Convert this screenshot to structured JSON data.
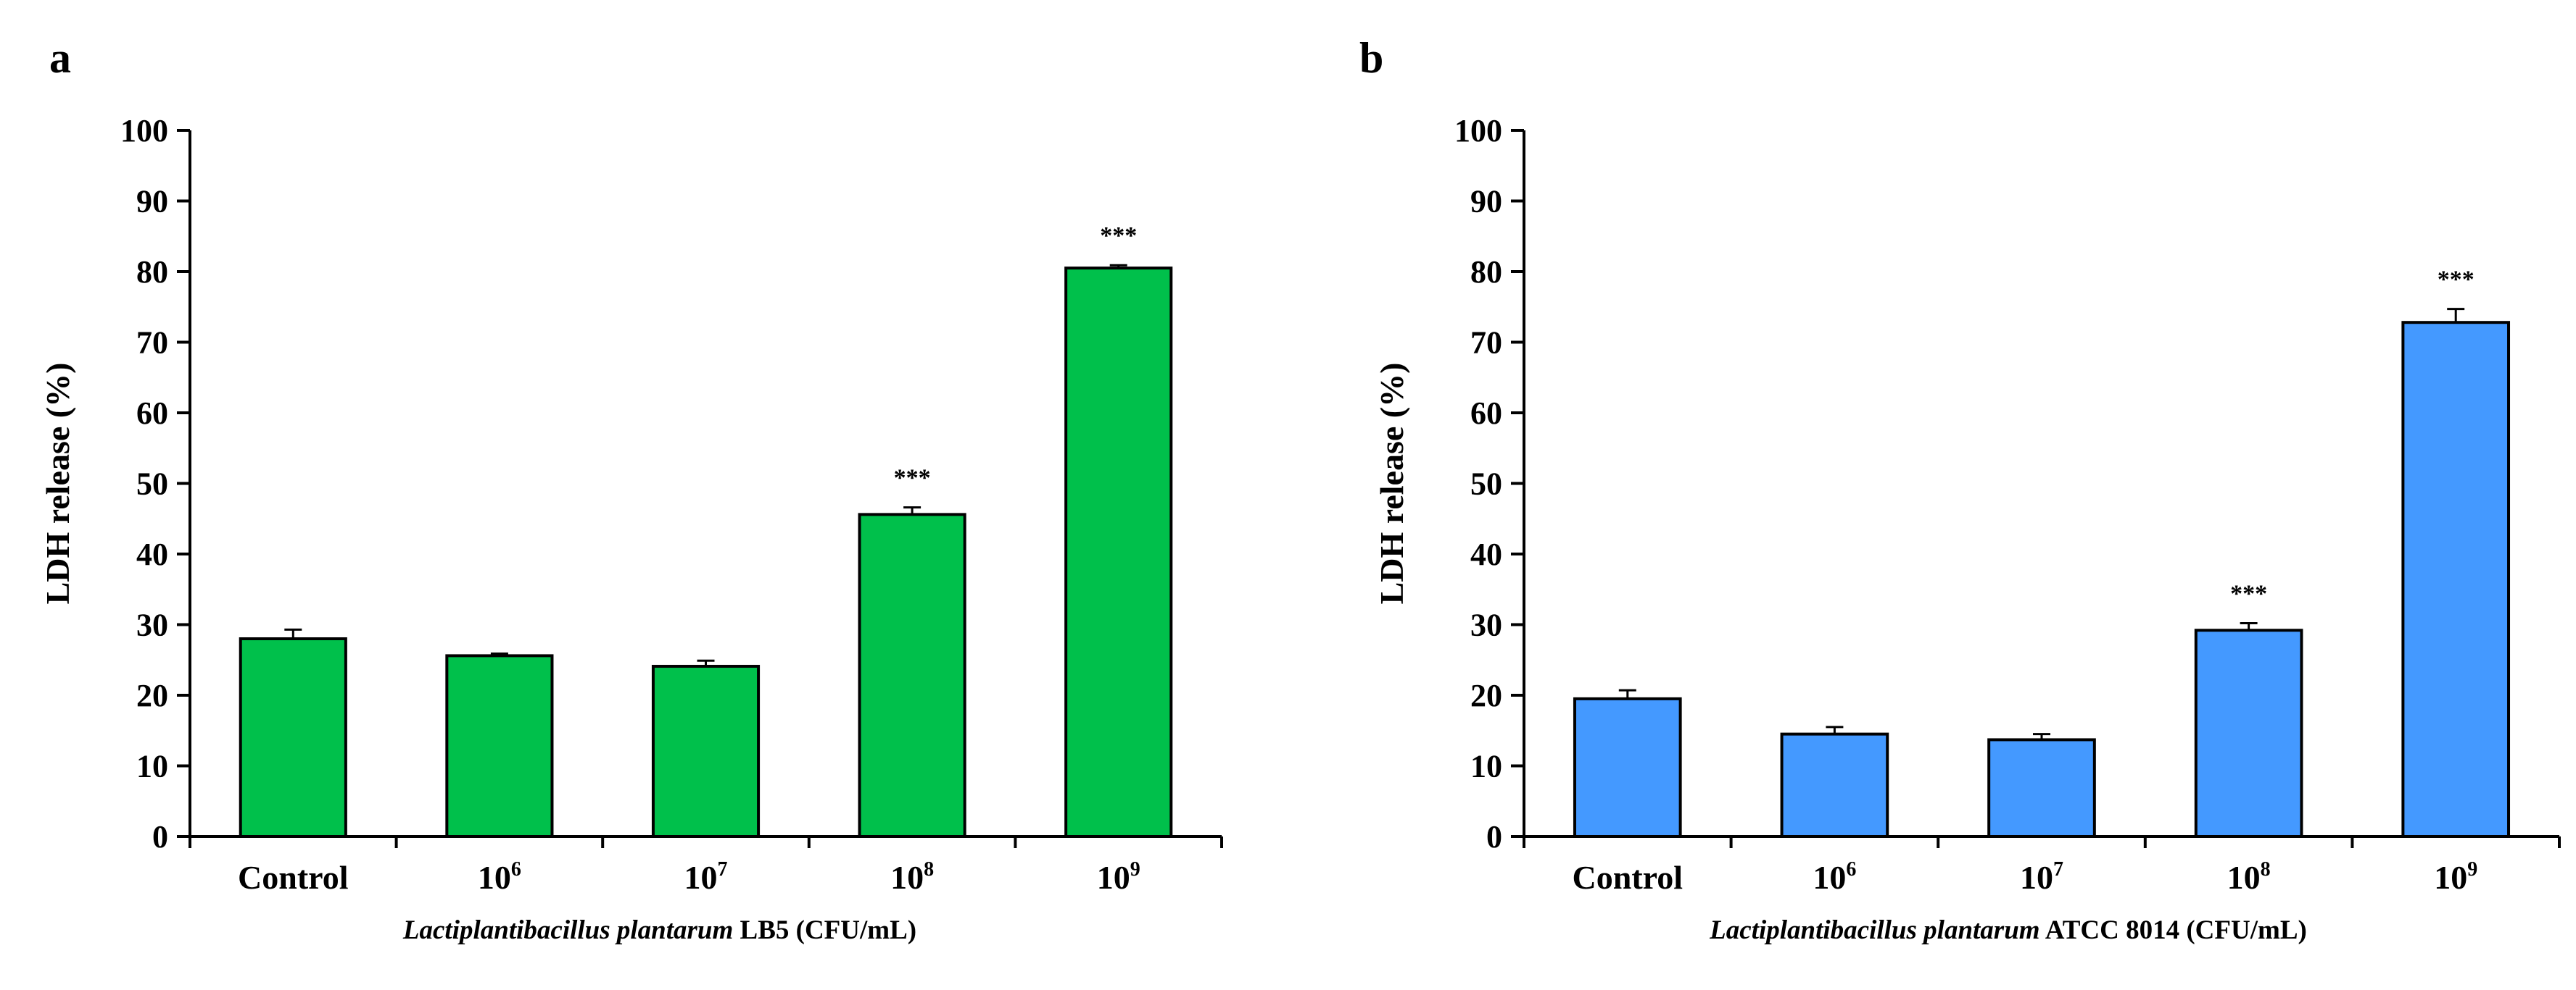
{
  "chart_data": [
    {
      "panel": "a",
      "type": "bar",
      "categories": [
        {
          "base": "Control",
          "exp": ""
        },
        {
          "base": "10",
          "exp": "6"
        },
        {
          "base": "10",
          "exp": "7"
        },
        {
          "base": "10",
          "exp": "8"
        },
        {
          "base": "10",
          "exp": "9"
        }
      ],
      "values": [
        28,
        25.6,
        24.1,
        45.6,
        80.5
      ],
      "errors": [
        1.3,
        0.3,
        0.8,
        1.0,
        0.4
      ],
      "significance": [
        "",
        "",
        "",
        "***",
        "***"
      ],
      "ylabel": "LDH release (%)",
      "xlabel_italic": "Lactiplantibacillus plantarum",
      "xlabel_rest": " LB5 (CFU/mL)",
      "ylim": [
        0,
        100
      ],
      "yticks": [
        0,
        10,
        20,
        30,
        40,
        50,
        60,
        70,
        80,
        90,
        100
      ],
      "bar_color": "#00C04B",
      "grid": false
    },
    {
      "panel": "b",
      "type": "bar",
      "categories": [
        {
          "base": "Control",
          "exp": ""
        },
        {
          "base": "10",
          "exp": "6"
        },
        {
          "base": "10",
          "exp": "7"
        },
        {
          "base": "10",
          "exp": "8"
        },
        {
          "base": "10",
          "exp": "9"
        }
      ],
      "values": [
        19.5,
        14.5,
        13.7,
        29.2,
        72.8
      ],
      "errors": [
        1.2,
        1.0,
        0.8,
        1.0,
        1.9
      ],
      "significance": [
        "",
        "",
        "",
        "***",
        "***"
      ],
      "ylabel": "LDH release (%)",
      "xlabel_italic": "Lactiplantibacillus plantarum",
      "xlabel_rest": " ATCC 8014 (CFU/mL)",
      "ylim": [
        0,
        100
      ],
      "yticks": [
        0,
        10,
        20,
        30,
        40,
        50,
        60,
        70,
        80,
        90,
        100
      ],
      "bar_color": "#4499FF",
      "grid": false
    }
  ]
}
